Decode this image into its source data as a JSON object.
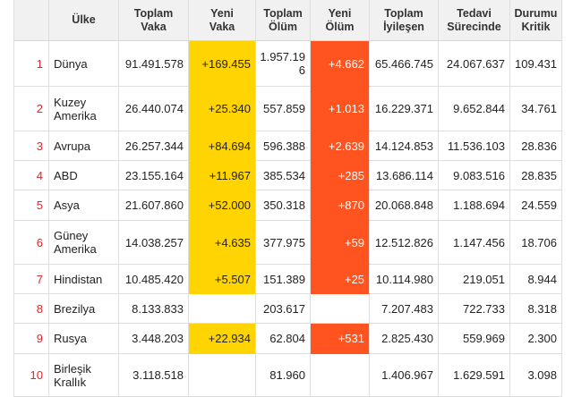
{
  "columns": {
    "country": "Ülke",
    "total_cases": "Toplam Vaka",
    "new_cases": "Yeni Vaka",
    "total_deaths": "Toplam Ölüm",
    "new_deaths": "Yeni Ölüm",
    "total_recovered": "Toplam İyileşen",
    "active_cases": "Tedavi Sürecinde",
    "critical": "Durumu Kritik"
  },
  "rows": [
    {
      "rank": "1",
      "country": "Dünya",
      "total_cases": "91.491.578",
      "new_cases": "+169.455",
      "total_deaths": "1.957.196",
      "new_deaths": "+4.662",
      "total_recovered": "65.466.745",
      "active_cases": "24.067.637",
      "critical": "109.431"
    },
    {
      "rank": "2",
      "country": "Kuzey Amerika",
      "total_cases": "26.440.074",
      "new_cases": "+25.340",
      "total_deaths": "557.859",
      "new_deaths": "+1.013",
      "total_recovered": "16.229.371",
      "active_cases": "9.652.844",
      "critical": "34.761"
    },
    {
      "rank": "3",
      "country": "Avrupa",
      "total_cases": "26.257.344",
      "new_cases": "+84.694",
      "total_deaths": "596.388",
      "new_deaths": "+2.639",
      "total_recovered": "14.124.853",
      "active_cases": "11.536.103",
      "critical": "28.836"
    },
    {
      "rank": "4",
      "country": "ABD",
      "total_cases": "23.155.164",
      "new_cases": "+11.967",
      "total_deaths": "385.534",
      "new_deaths": "+285",
      "total_recovered": "13.686.114",
      "active_cases": "9.083.516",
      "critical": "28.835"
    },
    {
      "rank": "5",
      "country": "Asya",
      "total_cases": "21.607.860",
      "new_cases": "+52.000",
      "total_deaths": "350.318",
      "new_deaths": "+870",
      "total_recovered": "20.068.848",
      "active_cases": "1.188.694",
      "critical": "24.559"
    },
    {
      "rank": "6",
      "country": "Güney Amerika",
      "total_cases": "14.038.257",
      "new_cases": "+4.635",
      "total_deaths": "377.975",
      "new_deaths": "+59",
      "total_recovered": "12.512.826",
      "active_cases": "1.147.456",
      "critical": "18.706"
    },
    {
      "rank": "7",
      "country": "Hindistan",
      "total_cases": "10.485.420",
      "new_cases": "+5.507",
      "total_deaths": "151.389",
      "new_deaths": "+25",
      "total_recovered": "10.114.980",
      "active_cases": "219.051",
      "critical": "8.944"
    },
    {
      "rank": "8",
      "country": "Brezilya",
      "total_cases": "8.133.833",
      "total_deaths": "203.617",
      "total_recovered": "7.207.483",
      "active_cases": "722.733",
      "critical": "8.318"
    },
    {
      "rank": "9",
      "country": "Rusya",
      "total_cases": "3.448.203",
      "new_cases": "+22.934",
      "total_deaths": "62.804",
      "new_deaths": "+531",
      "total_recovered": "2.825.430",
      "active_cases": "559.969",
      "critical": "2.300"
    },
    {
      "rank": "10",
      "country": "Birleşik Krallık",
      "total_cases": "3.118.518",
      "total_deaths": "81.960",
      "total_recovered": "1.406.967",
      "active_cases": "1.629.591",
      "critical": "3.098"
    }
  ],
  "colors": {
    "new_cases_highlight": "#ffd400",
    "new_deaths_highlight": "#ff5420",
    "rank_number": "#d7282f"
  }
}
